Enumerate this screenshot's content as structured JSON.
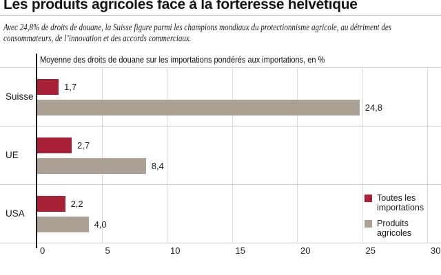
{
  "header": {
    "title": "Les produits agricoles face à la forteresse helvétique",
    "subtitle": "Avec 24,8% de droits de douane, la Suisse figure parmi les champions mondiaux du protectionnisme agricole, au détriment des consommateurs, de l’innovation et des accords commerciaux."
  },
  "chart_data": {
    "type": "bar",
    "orientation": "horizontal",
    "title": "Moyenne des droits de douane sur les importations pondérés aux importations, en %",
    "categories": [
      "Suisse",
      "UE",
      "USA"
    ],
    "series": [
      {
        "name": "Toutes les importations",
        "color": "#a72036",
        "values": [
          1.7,
          2.7,
          2.2
        ],
        "value_labels": [
          "1,7",
          "2,7",
          "2,2"
        ]
      },
      {
        "name": "Produits agricoles",
        "color": "#aba195",
        "values": [
          24.8,
          8.4,
          4.0
        ],
        "value_labels": [
          "24,8",
          "8,4",
          "4,0"
        ]
      }
    ],
    "xlim": [
      0,
      30
    ],
    "xticks": [
      0,
      5,
      10,
      15,
      20,
      25,
      30
    ],
    "xtick_labels": [
      "0",
      "5",
      "10",
      "15",
      "20",
      "25",
      "30"
    ],
    "grid": true,
    "legend_position": "bottom-right"
  },
  "colors": {
    "all_imports_bar": "#a72036",
    "agri_products_bar": "#aba195",
    "gridline": "#dcd9d3",
    "band_separator": "#cfccc6",
    "axis": "#1c1c1c",
    "title_rule": "#c9c9c9"
  }
}
